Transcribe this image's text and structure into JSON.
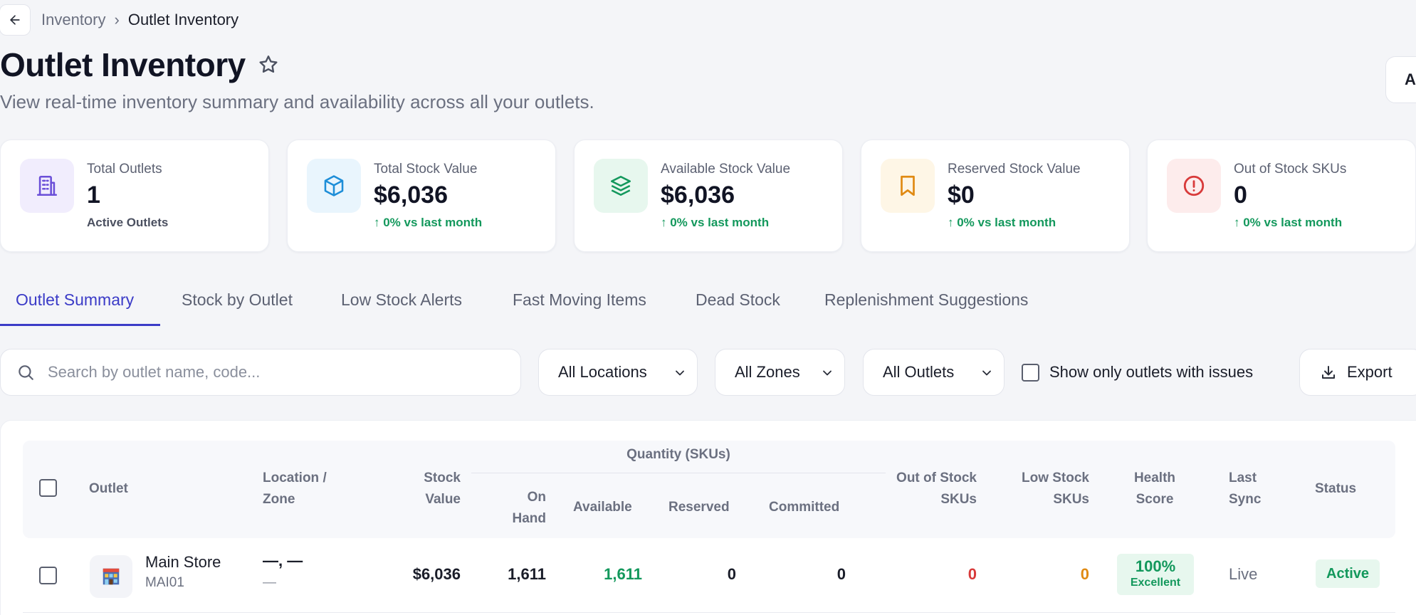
{
  "breadcrumb": {
    "parent": "Inventory",
    "separator": "›",
    "current": "Outlet Inventory"
  },
  "header": {
    "title": "Outlet Inventory",
    "subtitle": "View real-time inventory summary and availability across all your outlets.",
    "corner_button_label": "A"
  },
  "cards": [
    {
      "label": "Total Outlets",
      "value": "1",
      "sub": "Active Outlets",
      "icon": "building-icon",
      "color": "#6b4fd8",
      "bg": "#f1edfd"
    },
    {
      "label": "Total Stock Value",
      "value": "$6,036",
      "trend": "↑ 0% vs last month",
      "icon": "cube-icon",
      "color": "#1e8ed8",
      "bg": "#e9f5fd"
    },
    {
      "label": "Available Stock Value",
      "value": "$6,036",
      "trend": "↑ 0% vs last month",
      "icon": "layers-icon",
      "color": "#13985c",
      "bg": "#e7f7ee"
    },
    {
      "label": "Reserved Stock Value",
      "value": "$0",
      "trend": "↑ 0% vs last month",
      "icon": "bookmark-icon",
      "color": "#e08a12",
      "bg": "#fef6e6"
    },
    {
      "label": "Out of Stock SKUs",
      "value": "0",
      "trend": "↑ 0% vs last month",
      "icon": "alert-circle-icon",
      "color": "#d83a3a",
      "bg": "#fdecec"
    }
  ],
  "tabs": [
    "Outlet Summary",
    "Stock by Outlet",
    "Low Stock Alerts",
    "Fast Moving Items",
    "Dead Stock",
    "Replenishment Suggestions"
  ],
  "filters": {
    "search_placeholder": "Search by outlet name, code...",
    "location": "All Locations",
    "zone": "All Zones",
    "outlet": "All Outlets",
    "issues_label": "Show only outlets with issues",
    "export_label": "Export"
  },
  "table": {
    "headers": {
      "outlet": "Outlet",
      "location_1": "Location /",
      "location_2": "Zone",
      "stock_1": "Stock",
      "stock_2": "Value",
      "qty_group": "Quantity (SKUs)",
      "on_hand_1": "On",
      "on_hand_2": "Hand",
      "available": "Available",
      "reserved": "Reserved",
      "committed": "Committed",
      "oos_1": "Out of Stock",
      "oos_2": "SKUs",
      "low_1": "Low Stock",
      "low_2": "SKUs",
      "health_1": "Health",
      "health_2": "Score",
      "sync_1": "Last",
      "sync_2": "Sync",
      "status": "Status"
    },
    "rows": [
      {
        "name": "Main Store",
        "code": "MAI01",
        "location": "—, —",
        "zone": "—",
        "stock_value": "$6,036",
        "on_hand": "1,611",
        "available": "1,611",
        "reserved": "0",
        "committed": "0",
        "out_of_stock": "0",
        "low_stock": "0",
        "health": "100%",
        "health_label": "Excellent",
        "last_sync": "Live",
        "status": "Active"
      }
    ]
  },
  "colors": {
    "accent": "#3b3bc7",
    "success": "#13985c",
    "danger": "#d83a3a",
    "warning": "#e08a12"
  }
}
